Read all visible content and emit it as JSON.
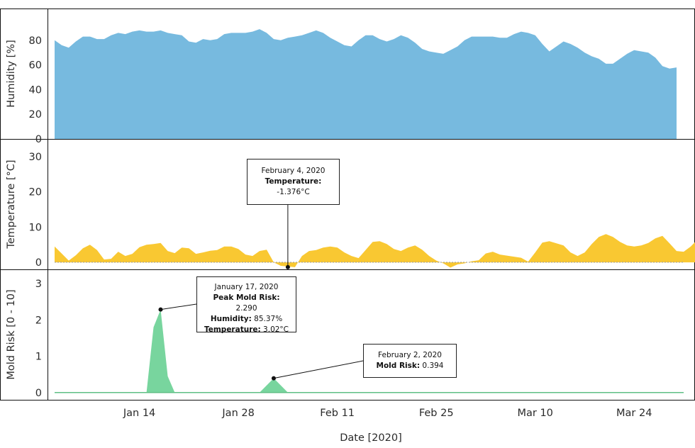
{
  "chart_data": [
    {
      "type": "area",
      "ylabel": "Humidity [%]",
      "ylim": [
        0,
        100
      ],
      "yticks": [
        0,
        20,
        40,
        60,
        80
      ],
      "color": "#77BADF",
      "x_start": "2020-01-02",
      "x_end": "2020-03-31",
      "values": [
        80,
        76,
        74,
        79,
        83,
        83,
        81,
        81,
        84,
        86,
        85,
        87,
        88,
        87,
        87,
        88,
        86,
        85,
        84,
        79,
        78,
        81,
        80,
        81,
        85,
        86,
        86,
        86,
        87,
        89,
        86,
        81,
        80,
        82,
        83,
        84,
        86,
        88,
        86,
        82,
        79,
        76,
        75,
        80,
        84,
        84,
        81,
        79,
        81,
        84,
        82,
        78,
        73,
        71,
        70,
        69,
        72,
        75,
        80,
        83,
        83,
        83,
        83,
        82,
        82,
        85,
        87,
        86,
        84,
        77,
        71,
        75,
        79,
        77,
        74,
        70,
        67,
        65,
        61,
        61,
        65,
        69,
        72,
        71,
        70,
        66,
        59,
        57,
        58
      ]
    },
    {
      "type": "area",
      "ylabel": "Temperature [°C]",
      "ylim": [
        -2,
        33
      ],
      "yticks": [
        0,
        10,
        20,
        30
      ],
      "color": "#F9C832",
      "x_start": "2020-01-02",
      "x_end": "2020-03-31",
      "values": [
        4.5,
        2.5,
        0.5,
        2,
        4,
        5,
        3.5,
        0.8,
        1,
        3,
        1.8,
        2.4,
        4.3,
        5,
        5.2,
        5.5,
        3.2,
        2.6,
        4.2,
        4,
        2.4,
        2.8,
        3.3,
        3.5,
        4.5,
        4.5,
        3.8,
        2.2,
        1.8,
        3.2,
        3.6,
        0,
        -1,
        -1.2,
        -1.376,
        1.8,
        3.2,
        3.5,
        4.2,
        4.5,
        4.2,
        2.8,
        1.8,
        1.2,
        3.5,
        5.8,
        6,
        5.2,
        3.8,
        3.2,
        4.2,
        4.8,
        3.6,
        1.8,
        0.5,
        -0.3,
        -1.5,
        -0.6,
        -0.3,
        0.3,
        0.6,
        2.5,
        3,
        2.2,
        1.9,
        1.6,
        1.3,
        0.2,
        2.8,
        5.6,
        6,
        5.4,
        4.8,
        2.8,
        1.8,
        2.8,
        5.2,
        7.2,
        8,
        7.2,
        5.8,
        4.8,
        4.5,
        4.8,
        5.5,
        6.8,
        7.5,
        5.4,
        3.2,
        3,
        4.5,
        6.5
      ]
    },
    {
      "type": "area",
      "ylabel": "Mold Risk [0 - 10]",
      "ylim": [
        -0.2,
        3.2
      ],
      "yticks": [
        0,
        1,
        2,
        3
      ],
      "color": "#78D59E",
      "x_start": "2020-01-02",
      "x_end": "2020-03-31",
      "points": [
        [
          "2020-01-02",
          0
        ],
        [
          "2020-01-15",
          0
        ],
        [
          "2020-01-16",
          1.8
        ],
        [
          "2020-01-17",
          2.29
        ],
        [
          "2020-01-18",
          0.45
        ],
        [
          "2020-01-19",
          0
        ],
        [
          "2020-01-31",
          0
        ],
        [
          "2020-02-02",
          0.394
        ],
        [
          "2020-02-04",
          0
        ],
        [
          "2020-03-31",
          0
        ]
      ],
      "xlabel": "Date [2020]",
      "xticks": [
        {
          "date": "2020-01-14",
          "label": "Jan 14"
        },
        {
          "date": "2020-01-28",
          "label": "Jan 28"
        },
        {
          "date": "2020-02-11",
          "label": "Feb 11"
        },
        {
          "date": "2020-02-25",
          "label": "Feb 25"
        },
        {
          "date": "2020-03-10",
          "label": "Mar 10"
        },
        {
          "date": "2020-03-24",
          "label": "Mar 24"
        }
      ]
    }
  ],
  "annotations": {
    "temp_callout": {
      "anchor_date": "2020-02-04",
      "anchor_value": -1.376,
      "date": "February 4, 2020",
      "label": "Temperature:",
      "value": "-1.376°C"
    },
    "peak_callout": {
      "anchor_date": "2020-01-17",
      "anchor_value": 2.29,
      "date": "January 17, 2020",
      "peak_label": "Peak Mold Risk:",
      "peak_value": "2.290",
      "humidity_label": "Humidity:",
      "humidity_value": "85.37%",
      "temp_label": "Temperature:",
      "temp_value": "3.02°C"
    },
    "risk_callout": {
      "anchor_date": "2020-02-02",
      "anchor_value": 0.394,
      "date": "February 2, 2020",
      "label": "Mold Risk:",
      "value": "0.394"
    }
  }
}
